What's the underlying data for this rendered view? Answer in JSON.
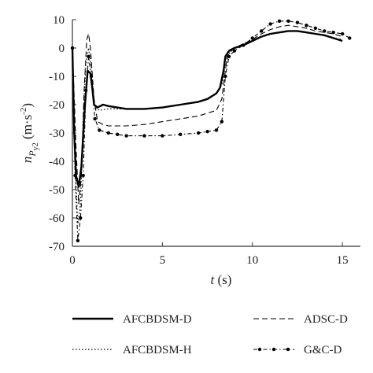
{
  "chart_data": {
    "type": "line",
    "title": "",
    "xlabel": "t (s)",
    "ylabel": "n_Py2 (m·s^-2)",
    "xlim": [
      0,
      16
    ],
    "ylim": [
      -70,
      10
    ],
    "xticks": [
      0,
      5,
      10,
      15
    ],
    "yticks": [
      10,
      0,
      -10,
      -20,
      -30,
      -40,
      -50,
      -60,
      -70
    ],
    "grid": false,
    "legend_position": "bottom",
    "series": [
      {
        "name": "AFCBDSM-D",
        "style": "solid",
        "x": [
          0,
          0.1,
          0.2,
          0.35,
          0.5,
          0.7,
          0.85,
          1.0,
          1.1,
          1.2,
          1.4,
          1.7,
          2.0,
          2.5,
          3.0,
          4.0,
          5.0,
          6.0,
          7.0,
          7.5,
          8.0,
          8.2,
          8.4,
          8.5,
          8.7,
          9.0,
          9.5,
          10.0,
          10.5,
          11.0,
          11.5,
          12.0,
          12.5,
          13.0,
          13.5,
          14.0,
          14.5,
          15.0
        ],
        "y": [
          0,
          -30,
          -45,
          -49,
          -42,
          -20,
          -8,
          -9,
          -14,
          -20,
          -21,
          -20,
          -20.5,
          -21,
          -21.5,
          -21.5,
          -21,
          -20,
          -19,
          -18,
          -16,
          -14,
          -8,
          -3,
          -1,
          0,
          1,
          2.5,
          4,
          5,
          5.5,
          6,
          6,
          5.5,
          5,
          4.5,
          3.5,
          2.5
        ]
      },
      {
        "name": "ADSC-D",
        "style": "dashed",
        "x": [
          0,
          0.2,
          0.35,
          0.5,
          0.65,
          0.8,
          0.9,
          1.0,
          1.2,
          1.4,
          1.7,
          2.0,
          3.0,
          4.0,
          5.0,
          6.0,
          7.0,
          8.0,
          8.3,
          8.5,
          8.6,
          8.8,
          9.0,
          9.5,
          10.0,
          10.5,
          11.0,
          11.5,
          12.0,
          12.5,
          13.0,
          13.5,
          14.0,
          14.5,
          15.0
        ],
        "y": [
          0,
          -35,
          -55,
          -45,
          -15,
          3,
          5,
          0,
          -18,
          -26,
          -27,
          -27.5,
          -27.5,
          -27,
          -26,
          -25,
          -24,
          -22,
          -18,
          -8,
          -3,
          -1,
          0,
          1.5,
          3,
          5,
          6.5,
          7.5,
          8,
          7.5,
          7,
          6,
          5.5,
          5,
          4
        ]
      },
      {
        "name": "AFCBDSM-H",
        "style": "dotted",
        "x": [
          0,
          0.15,
          0.3,
          0.45,
          0.6,
          0.75,
          0.9,
          1.05,
          1.25,
          1.5,
          2.0,
          3.0,
          4.0,
          5.0,
          6.0,
          7.0,
          7.5,
          8.0,
          8.3,
          8.5,
          8.7,
          9.0,
          9.5,
          10.0,
          10.5,
          11.0,
          11.5,
          12.0,
          12.5,
          13.0,
          13.5,
          14.0,
          14.5,
          15.0
        ],
        "y": [
          0,
          -40,
          -62,
          -55,
          -25,
          -5,
          0,
          -8,
          -21,
          -22,
          -21.5,
          -21.5,
          -21.5,
          -21,
          -20,
          -19,
          -18,
          -16,
          -13,
          -6,
          -2,
          0,
          1,
          2.5,
          4,
          5,
          5.5,
          6,
          6,
          5.5,
          5,
          4.5,
          3.5,
          3
        ]
      },
      {
        "name": "G&C-D",
        "style": "dash-dot-marker",
        "x": [
          0,
          0.15,
          0.3,
          0.45,
          0.6,
          0.75,
          0.9,
          1.05,
          1.25,
          1.5,
          2.0,
          2.5,
          3.0,
          4.0,
          5.0,
          6.0,
          7.0,
          7.5,
          8.0,
          8.3,
          8.5,
          8.7,
          9.0,
          9.5,
          10.0,
          10.5,
          11.0,
          11.5,
          12.0,
          12.5,
          13.0,
          13.5,
          14.0,
          14.5,
          15.0,
          15.4
        ],
        "y": [
          0,
          -45,
          -68,
          -60,
          -45,
          -15,
          -3,
          -10,
          -25,
          -29,
          -30,
          -30.5,
          -31,
          -31,
          -31,
          -30.5,
          -30,
          -29.5,
          -29,
          -26,
          -10,
          -3,
          -1,
          1,
          3.5,
          6,
          8.5,
          9.5,
          9.5,
          9,
          8,
          7,
          6,
          5.5,
          5,
          3.5
        ]
      }
    ]
  },
  "legend": {
    "items": [
      {
        "label": "AFCBDSM-D",
        "style": "solid"
      },
      {
        "label": "ADSC-D",
        "style": "dashed"
      },
      {
        "label": "AFCBDSM-H",
        "style": "dotted"
      },
      {
        "label": "G&C-D",
        "style": "dash-dot-marker"
      }
    ]
  },
  "colors": {
    "line": "#000000",
    "axis": "#333333",
    "text": "#222222"
  }
}
